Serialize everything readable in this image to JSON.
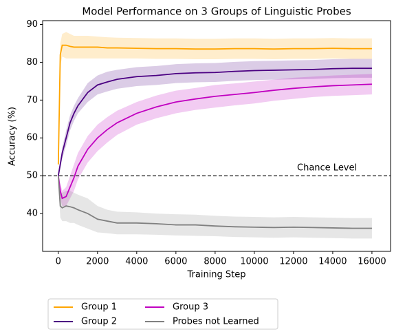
{
  "chart_data": {
    "type": "line",
    "title": "Model Performance on 3 Groups of Linguistic Probes",
    "xlabel": "Training Step",
    "ylabel": "Accuracy (%)",
    "x": [
      0,
      100,
      200,
      400,
      600,
      800,
      1000,
      1500,
      2000,
      2500,
      3000,
      4000,
      5000,
      6000,
      7000,
      8000,
      9000,
      10000,
      11000,
      12000,
      13000,
      14000,
      15000,
      16000
    ],
    "series": [
      {
        "name": "Group 1",
        "color": "#ffa500",
        "values": [
          53,
          82,
          84.5,
          84.5,
          84.2,
          84,
          84,
          84,
          84,
          83.8,
          83.8,
          83.7,
          83.6,
          83.6,
          83.5,
          83.5,
          83.6,
          83.6,
          83.5,
          83.6,
          83.6,
          83.7,
          83.6,
          83.6
        ],
        "upper": [
          54,
          85,
          87.5,
          88,
          87.5,
          87,
          87,
          87,
          86.8,
          86.6,
          86.5,
          86.4,
          86.3,
          86.3,
          86.2,
          86.2,
          86.3,
          86.3,
          86.2,
          86.3,
          86.3,
          86.4,
          86.3,
          86.3
        ],
        "lower": [
          52,
          79,
          81.5,
          81,
          81,
          81,
          81,
          81,
          81,
          81,
          81,
          81,
          80.9,
          80.9,
          80.8,
          80.8,
          80.9,
          80.9,
          80.8,
          80.9,
          80.9,
          81,
          80.9,
          80.9
        ]
      },
      {
        "name": "Group 2",
        "color": "#4b0082",
        "values": [
          50,
          53,
          56,
          60,
          64,
          66.5,
          68.5,
          72,
          74,
          74.8,
          75.5,
          76.2,
          76.5,
          77,
          77.2,
          77.3,
          77.6,
          77.8,
          77.9,
          78,
          78.1,
          78.3,
          78.4,
          78.4
        ],
        "upper": [
          51,
          54,
          57.5,
          62,
          66,
          68.5,
          70.5,
          74.5,
          76.5,
          77.5,
          78,
          78.7,
          79,
          79.5,
          79.7,
          79.8,
          80.1,
          80.3,
          80.4,
          80.5,
          80.6,
          80.8,
          80.9,
          80.9
        ],
        "lower": [
          49,
          52,
          54.5,
          58,
          62,
          64.5,
          66.5,
          69.5,
          71.5,
          72.3,
          73,
          73.7,
          74,
          74.5,
          74.7,
          74.8,
          75.1,
          75.3,
          75.4,
          75.5,
          75.6,
          75.8,
          75.9,
          75.9
        ]
      },
      {
        "name": "Group 3",
        "color": "#c000c0",
        "values": [
          50,
          46,
          44,
          44.5,
          47,
          49.5,
          52.5,
          57,
          60,
          62.2,
          64,
          66.5,
          68.2,
          69.5,
          70.3,
          71,
          71.5,
          72,
          72.6,
          73.1,
          73.5,
          73.8,
          74,
          74.2
        ],
        "upper": [
          51,
          48,
          46,
          47,
          50,
          53,
          56,
          60.5,
          63.5,
          65.5,
          67.2,
          69.5,
          71.2,
          72.5,
          73.2,
          74,
          74.4,
          74.9,
          75.4,
          75.9,
          76.2,
          76.5,
          76.7,
          76.9
        ],
        "lower": [
          49,
          44,
          42,
          42,
          44,
          46,
          49,
          53.5,
          56.5,
          58.8,
          60.8,
          63.5,
          65.2,
          66.5,
          67.4,
          68,
          68.6,
          69.1,
          69.8,
          70.3,
          70.8,
          71.1,
          71.3,
          71.5
        ]
      },
      {
        "name": "Probes not Learned",
        "color": "#808080",
        "values": [
          50,
          42,
          41.5,
          42,
          41.8,
          41.5,
          41,
          40,
          38.5,
          38,
          37.5,
          37.5,
          37.3,
          37,
          37,
          36.7,
          36.5,
          36.4,
          36.3,
          36.4,
          36.3,
          36.2,
          36.1,
          36.1
        ],
        "upper": [
          51,
          45,
          45.5,
          46,
          46,
          45.5,
          45,
          44,
          42,
          41,
          40.5,
          40.3,
          40,
          39.8,
          39.7,
          39.4,
          39.2,
          39.1,
          39,
          39.1,
          39,
          38.9,
          38.8,
          38.8
        ],
        "lower": [
          49,
          39,
          38,
          38,
          37.5,
          37.5,
          37,
          36,
          35,
          34.8,
          34.5,
          34.5,
          34.4,
          34.2,
          34.1,
          34,
          33.8,
          33.7,
          33.6,
          33.7,
          33.6,
          33.5,
          33.4,
          33.4
        ]
      }
    ],
    "hline": {
      "value": 50,
      "label": "Chance Level"
    },
    "xlim": [
      -800,
      16950
    ],
    "ylim": [
      30,
      91
    ],
    "xticks": [
      0,
      2000,
      4000,
      6000,
      8000,
      10000,
      12000,
      14000,
      16000
    ],
    "yticks": [
      40,
      50,
      60,
      70,
      80,
      90
    ],
    "legend": "below"
  }
}
